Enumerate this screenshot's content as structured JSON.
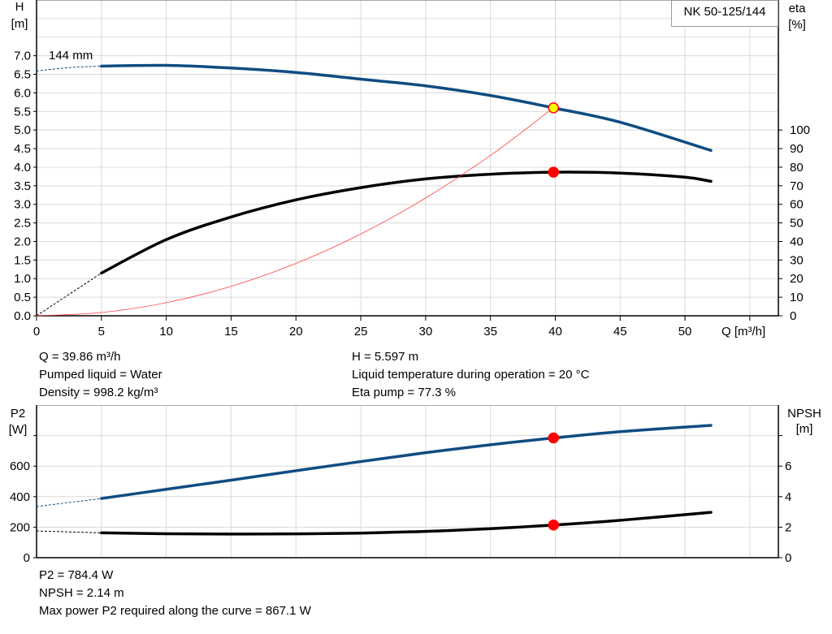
{
  "chart_data": [
    {
      "type": "line",
      "title_box": "NK 50-125/144",
      "curve_label": "144 mm",
      "xlabel": "Q [m³/h]",
      "ylabel_left": {
        "name": "H",
        "unit": "[m]"
      },
      "ylabel_right": {
        "name": "eta",
        "unit": "[%]"
      },
      "xlim": [
        0,
        57.2
      ],
      "ylim_left": [
        0,
        8.5
      ],
      "ylim_right": [
        0,
        170
      ],
      "x_ticks": [
        0,
        5,
        10,
        15,
        20,
        25,
        30,
        35,
        40,
        45,
        50
      ],
      "y_ticks_left": [
        "0.0",
        "0.5",
        "1.0",
        "1.5",
        "2.0",
        "2.5",
        "3.0",
        "3.5",
        "4.0",
        "4.5",
        "5.0",
        "5.5",
        "6.0",
        "6.5",
        "7.0"
      ],
      "y_ticks_right": [
        0,
        10,
        20,
        30,
        40,
        50,
        60,
        70,
        80,
        90,
        100
      ],
      "grid": true,
      "series": [
        {
          "key": "H",
          "axis": "left",
          "color": "#0f4c81",
          "extrapolated": {
            "x": [
              0,
              2.5,
              5
            ],
            "y": [
              6.59,
              6.68,
              6.72
            ]
          },
          "x": [
            5,
            10,
            15,
            20,
            25,
            30,
            35,
            39.86,
            45,
            52
          ],
          "y": [
            6.72,
            6.74,
            6.67,
            6.55,
            6.37,
            6.19,
            5.93,
            5.597,
            5.21,
            4.45
          ]
        },
        {
          "key": "eta",
          "axis": "right",
          "color": "#000000",
          "extrapolated": {
            "x": [
              0,
              5
            ],
            "y": [
              0,
              23
            ]
          },
          "x": [
            5,
            10,
            15,
            20,
            25,
            30,
            35,
            39.86,
            45,
            50,
            52
          ],
          "y": [
            23,
            41,
            53.2,
            62.4,
            69,
            73.7,
            76.2,
            77.3,
            76.8,
            74.6,
            72.4
          ]
        },
        {
          "key": "system",
          "axis": "left",
          "color": "#ff4040",
          "x": [
            0,
            5,
            10,
            15,
            20,
            25,
            30,
            35,
            39.86
          ],
          "y": [
            0,
            0.088,
            0.352,
            0.793,
            1.409,
            2.202,
            3.171,
            4.316,
            5.597
          ]
        }
      ],
      "operating_points": [
        {
          "series": "H",
          "x": 39.86,
          "y": 5.597,
          "fill": "#ffff00",
          "stroke": "#ff0000"
        },
        {
          "series": "eta",
          "x": 39.86,
          "y": 77.3,
          "fill": "#ff0000",
          "stroke": "#ff0000"
        }
      ]
    },
    {
      "type": "line",
      "ylabel_left": {
        "name": "P2",
        "unit": "[W]"
      },
      "ylabel_right": {
        "name": "NPSH",
        "unit": "[m]"
      },
      "xlim": [
        0,
        57.2
      ],
      "ylim_left": [
        0,
        1000
      ],
      "ylim_right": [
        0,
        10
      ],
      "x_grid": [
        5,
        10,
        15,
        20,
        25,
        30,
        35,
        40,
        45,
        50,
        55
      ],
      "y_ticks_left": [
        0,
        200,
        400,
        600,
        800
      ],
      "y_tick_labels_left": [
        "0",
        "200",
        "400",
        "600",
        ""
      ],
      "y_ticks_right": [
        0,
        2,
        4,
        6,
        8
      ],
      "y_tick_labels_right": [
        "0",
        "2",
        "4",
        "6",
        ""
      ],
      "grid": true,
      "series": [
        {
          "key": "P2",
          "axis": "left",
          "color": "#0f4c81",
          "extrapolated": {
            "x": [
              0,
              5
            ],
            "y": [
              335,
              388
            ]
          },
          "x": [
            5,
            10,
            15,
            20,
            25,
            30,
            35,
            39.86,
            45,
            52
          ],
          "y": [
            388,
            448,
            508,
            570,
            630,
            688,
            740,
            784.4,
            826,
            867.1
          ]
        },
        {
          "key": "NPSH",
          "axis": "right",
          "color": "#000000",
          "extrapolated": {
            "x": [
              0,
              5
            ],
            "y": [
              1.75,
              1.63
            ]
          },
          "x": [
            5,
            10,
            15,
            20,
            25,
            30,
            35,
            39.86,
            45,
            52
          ],
          "y": [
            1.63,
            1.57,
            1.55,
            1.56,
            1.61,
            1.72,
            1.9,
            2.14,
            2.45,
            2.97
          ]
        }
      ],
      "operating_points": [
        {
          "series": "P2",
          "x": 39.86,
          "y": 784.4,
          "fill": "#ff0000",
          "stroke": "#ff0000"
        },
        {
          "series": "NPSH",
          "x": 39.86,
          "y": 2.14,
          "fill": "#ff0000",
          "stroke": "#ff0000"
        }
      ]
    }
  ],
  "info_top": {
    "q": "Q = 39.86 m³/h",
    "liquid": "Pumped liquid = Water",
    "density": "Density = 998.2 kg/m³",
    "h": "H = 5.597 m",
    "temperature": "Liquid temperature during operation = 20 °C",
    "eta": "Eta pump = 77.3 %"
  },
  "info_bottom": {
    "p2": "P2 = 784.4 W",
    "npsh": "NPSH = 2.14 m",
    "max_power": "Max power P2 required along the curve = 867.1 W"
  }
}
